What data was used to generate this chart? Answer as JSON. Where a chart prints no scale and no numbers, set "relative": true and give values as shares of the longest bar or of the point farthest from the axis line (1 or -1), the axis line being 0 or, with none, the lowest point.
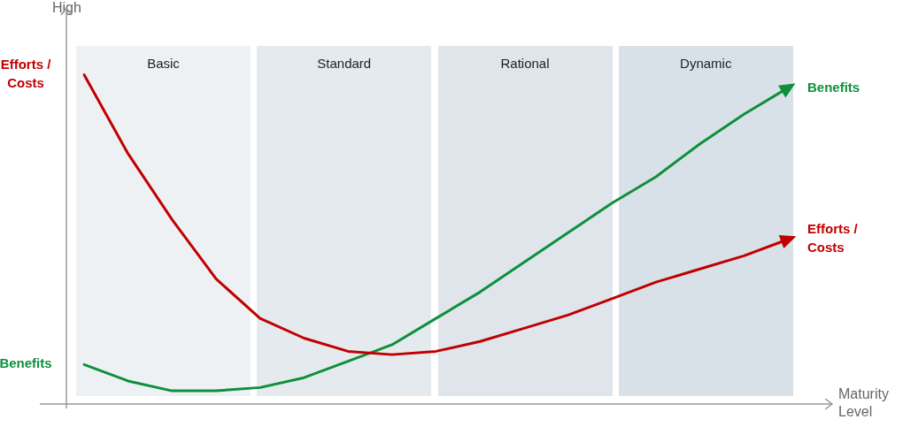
{
  "chart_data": {
    "type": "line",
    "relative": true,
    "xlabel": "Maturity Level",
    "ylabel": "High",
    "tick_labels": false,
    "grid": false,
    "legend": "right",
    "marker": "none",
    "line_style": "solid",
    "categories": [
      null,
      null,
      null,
      null,
      null,
      null,
      null,
      null,
      null,
      null,
      null,
      null,
      null,
      null,
      null,
      null,
      null
    ],
    "annotations": [
      "Basic",
      "Standard",
      "Rational",
      "Dynamic"
    ],
    "series": [
      {
        "name": "Efforts / Costs",
        "color": "#c00000",
        "values": [
          1.0,
          0.76,
          0.56,
          0.38,
          0.26,
          0.2,
          0.16,
          0.15,
          0.16,
          0.19,
          0.23,
          0.27,
          0.32,
          0.37,
          0.41,
          0.45,
          0.5
        ]
      },
      {
        "name": "Benefits",
        "color": "#0e8f3c",
        "values": [
          0.12,
          0.07,
          0.04,
          0.04,
          0.05,
          0.08,
          0.13,
          0.18,
          0.26,
          0.34,
          0.43,
          0.52,
          0.61,
          0.69,
          0.79,
          0.88,
          0.96
        ]
      }
    ]
  }
}
